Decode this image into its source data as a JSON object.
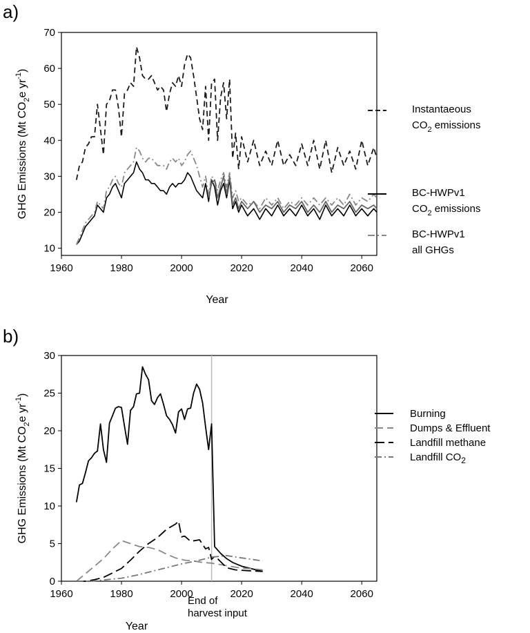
{
  "chart_data": [
    {
      "type": "line",
      "panel_label": "a)",
      "xlabel": "Year",
      "ylabel_main": "GHG Emissions (Mt CO",
      "ylabel_sub": "2",
      "ylabel_mid": "e yr",
      "ylabel_sup": "-1",
      "ylabel_end": ")",
      "xlim": [
        1960,
        2065
      ],
      "ylim": [
        8,
        70
      ],
      "xticks": [
        1960,
        1980,
        2000,
        2020,
        2040,
        2060
      ],
      "yticks": [
        10,
        20,
        30,
        40,
        50,
        60,
        70
      ],
      "grid": false,
      "legend_position": "right",
      "series": [
        {
          "name": "Instantaeous CO2 emissions",
          "legend_line1": "Instantaeous",
          "legend_line2_main": "CO",
          "legend_line2_sub": "2",
          "legend_line2_end": " emissions",
          "color": "#1a1a1a",
          "dash": "8,5",
          "x": [
            1965,
            1966,
            1967,
            1968,
            1969,
            1970,
            1971,
            1972,
            1973,
            1974,
            1975,
            1976,
            1977,
            1978,
            1979,
            1980,
            1981,
            1982,
            1983,
            1984,
            1985,
            1986,
            1987,
            1988,
            1989,
            1990,
            1991,
            1992,
            1993,
            1994,
            1995,
            1996,
            1997,
            1998,
            1999,
            2000,
            2001,
            2002,
            2003,
            2004,
            2005,
            2006,
            2007,
            2008,
            2009,
            2010,
            2011,
            2012,
            2013,
            2014,
            2015,
            2016,
            2017,
            2018,
            2019,
            2020,
            2022,
            2024,
            2026,
            2028,
            2030,
            2032,
            2034,
            2036,
            2038,
            2040,
            2042,
            2044,
            2046,
            2048,
            2050,
            2052,
            2054,
            2056,
            2058,
            2060,
            2062,
            2064,
            2065
          ],
          "y": [
            29,
            33,
            34,
            38,
            39,
            41,
            41,
            50,
            43,
            36,
            50,
            51,
            54,
            54,
            49,
            41,
            53,
            54,
            56,
            55,
            66,
            63,
            58,
            57,
            57,
            58,
            56,
            54,
            55,
            54,
            48,
            53,
            56,
            55,
            58,
            55,
            61,
            64,
            63,
            58,
            52,
            46,
            43,
            55,
            40,
            56,
            57,
            40,
            52,
            56,
            46,
            57,
            35,
            42,
            32,
            41,
            34,
            40,
            33,
            37,
            33,
            40,
            33,
            36,
            33,
            39,
            33,
            40,
            32,
            40,
            31,
            38,
            33,
            37,
            32,
            40,
            33,
            38,
            35
          ]
        },
        {
          "name": "BC-HWPv1 CO2 emissions",
          "legend_line1": "BC-HWPv1",
          "legend_line2_main": "CO",
          "legend_line2_sub": "2",
          "legend_line2_end": " emissions",
          "color": "#000000",
          "dash": "",
          "x": [
            1965,
            1966,
            1967,
            1968,
            1969,
            1970,
            1971,
            1972,
            1973,
            1974,
            1975,
            1976,
            1977,
            1978,
            1979,
            1980,
            1981,
            1982,
            1983,
            1984,
            1985,
            1986,
            1987,
            1988,
            1989,
            1990,
            1991,
            1992,
            1993,
            1994,
            1995,
            1996,
            1997,
            1998,
            1999,
            2000,
            2001,
            2002,
            2003,
            2004,
            2005,
            2006,
            2007,
            2008,
            2009,
            2010,
            2011,
            2012,
            2013,
            2014,
            2015,
            2016,
            2017,
            2018,
            2019,
            2020,
            2022,
            2024,
            2026,
            2028,
            2030,
            2032,
            2034,
            2036,
            2038,
            2040,
            2042,
            2044,
            2046,
            2048,
            2050,
            2052,
            2054,
            2056,
            2058,
            2060,
            2062,
            2064,
            2065
          ],
          "y": [
            11,
            12,
            14,
            16,
            17,
            18,
            19,
            22,
            21,
            20,
            24,
            25,
            27,
            28,
            26,
            24,
            28,
            29,
            30,
            31,
            34,
            32,
            31,
            29,
            29,
            28,
            28,
            27,
            26,
            26,
            25,
            27,
            28,
            27,
            28,
            28,
            29,
            31,
            30,
            28,
            26,
            25,
            24,
            28,
            23,
            29,
            27,
            22,
            26,
            28,
            24,
            29,
            21,
            23,
            20,
            22,
            19,
            21,
            18,
            21,
            19,
            22,
            19,
            21,
            19,
            22,
            19,
            21,
            18,
            22,
            19,
            21,
            19,
            22,
            19,
            21,
            19,
            21,
            20
          ]
        },
        {
          "name": "BC-HWPv1 all GHGs",
          "legend_line1": "BC-HWPv1",
          "legend_line2_main": "all GHGs",
          "legend_line2_sub": "",
          "legend_line2_end": "",
          "color": "#888888",
          "dash": "10,4,2,4",
          "x": [
            1965,
            1966,
            1967,
            1968,
            1969,
            1970,
            1971,
            1972,
            1973,
            1974,
            1975,
            1976,
            1977,
            1978,
            1979,
            1980,
            1981,
            1982,
            1983,
            1984,
            1985,
            1986,
            1987,
            1988,
            1989,
            1990,
            1991,
            1992,
            1993,
            1994,
            1995,
            1996,
            1997,
            1998,
            1999,
            2000,
            2001,
            2002,
            2003,
            2004,
            2005,
            2006,
            2007,
            2008,
            2009,
            2010,
            2011,
            2012,
            2013,
            2014,
            2015,
            2016,
            2017,
            2018,
            2019,
            2020,
            2022,
            2024,
            2026,
            2028,
            2030,
            2032,
            2034,
            2036,
            2038,
            2040,
            2042,
            2044,
            2046,
            2048,
            2050,
            2052,
            2054,
            2056,
            2058,
            2060,
            2062,
            2064,
            2065
          ],
          "y": [
            11,
            13,
            15,
            17,
            18,
            19,
            20,
            23,
            22,
            21,
            26,
            27,
            29,
            30,
            28,
            27,
            31,
            32,
            33,
            34,
            38,
            37,
            35,
            34,
            35,
            35,
            34,
            33,
            33,
            33,
            32,
            34,
            35,
            34,
            35,
            33,
            34,
            36,
            37,
            35,
            33,
            30,
            27,
            30,
            25,
            30,
            29,
            26,
            29,
            31,
            27,
            31,
            24,
            26,
            23,
            24,
            22,
            23,
            21,
            24,
            22,
            24,
            21,
            23,
            22,
            24,
            22,
            24,
            22,
            24,
            22,
            24,
            22,
            25,
            22,
            24,
            23,
            25,
            24
          ]
        },
        {
          "name": "",
          "color": "#666666",
          "dash": "",
          "x": [
            2009,
            2010,
            2011,
            2012,
            2013,
            2014,
            2015,
            2016,
            2017,
            2018,
            2019,
            2020,
            2022,
            2024,
            2026,
            2028,
            2030,
            2032,
            2034,
            2036,
            2038,
            2040,
            2042,
            2044,
            2046,
            2048,
            2050,
            2052,
            2054,
            2056,
            2058,
            2060,
            2062,
            2064,
            2065
          ],
          "y": [
            24,
            28,
            29,
            24,
            27,
            30,
            25,
            30,
            22,
            24,
            21,
            23,
            21,
            23,
            20,
            22,
            21,
            23,
            20,
            22,
            21,
            23,
            20,
            22,
            20,
            23,
            20,
            22,
            21,
            23,
            20,
            22,
            21,
            22,
            21
          ]
        }
      ]
    },
    {
      "type": "line",
      "panel_label": "b)",
      "xlabel": "Year",
      "ylabel_main": "GHG Emissions (Mt CO",
      "ylabel_sub": "2",
      "ylabel_mid": "e yr",
      "ylabel_sup": "-1",
      "ylabel_end": ")",
      "xlim": [
        1960,
        2065
      ],
      "ylim": [
        0,
        30
      ],
      "xticks": [
        1960,
        1980,
        2000,
        2020,
        2040,
        2060
      ],
      "yticks": [
        0,
        5,
        10,
        15,
        20,
        25,
        30
      ],
      "grid": false,
      "legend_position": "right",
      "reference_line": {
        "x": 2010,
        "color": "#bbbbbb",
        "label_line1": "End of",
        "label_line2": "harvest input"
      },
      "series": [
        {
          "name": "Burning",
          "label_main": "Burning",
          "label_sub": "",
          "color": "#000000",
          "dash": "",
          "x": [
            1965,
            1966,
            1967,
            1968,
            1969,
            1970,
            1971,
            1972,
            1973,
            1974,
            1975,
            1976,
            1977,
            1978,
            1979,
            1980,
            1981,
            1982,
            1983,
            1984,
            1985,
            1986,
            1987,
            1988,
            1989,
            1990,
            1991,
            1992,
            1993,
            1994,
            1995,
            1996,
            1997,
            1998,
            1999,
            2000,
            2001,
            2002,
            2003,
            2004,
            2005,
            2006,
            2007,
            2008,
            2009,
            2010,
            2011,
            2013,
            2015,
            2017,
            2020,
            2024,
            2027
          ],
          "y": [
            10.5,
            12.8,
            13,
            14.4,
            16,
            16.4,
            17,
            17.3,
            20.9,
            17.5,
            15.8,
            21,
            22,
            23,
            23.2,
            23.1,
            20.6,
            18.2,
            22.7,
            23.2,
            24.9,
            25,
            28.5,
            27.5,
            26.8,
            24,
            23.5,
            24.4,
            24.9,
            23.5,
            22,
            21.5,
            20.8,
            19.7,
            22.5,
            22.9,
            21.5,
            22.9,
            23,
            25,
            26.2,
            25.5,
            23.7,
            20.5,
            17.5,
            20.9,
            4.6,
            3.7,
            3,
            2.5,
            2,
            1.6,
            1.3
          ]
        },
        {
          "name": "Dumps & Effluent",
          "label_main": "Dumps & Effluent",
          "label_sub": "",
          "color": "#888888",
          "dash": "12,6",
          "x": [
            1965,
            1968,
            1971,
            1974,
            1977,
            1980,
            1983,
            1986,
            1989,
            1992,
            1995,
            1998,
            2001,
            2004,
            2007,
            2010,
            2013,
            2016,
            2019,
            2022,
            2025,
            2027
          ],
          "y": [
            0,
            1,
            2,
            3,
            4.3,
            5.4,
            5,
            4.6,
            4.5,
            4.2,
            3.6,
            3.1,
            2.8,
            2.7,
            2.5,
            2.4,
            2.2,
            2.0,
            1.8,
            1.7,
            1.6,
            1.5
          ]
        },
        {
          "name": "Landfill methane",
          "label_main": "Landfill methane",
          "label_sub": "",
          "color": "#000000",
          "dash": "14,6",
          "x": [
            1965,
            1968,
            1971,
            1974,
            1977,
            1980,
            1983,
            1986,
            1989,
            1992,
            1995,
            1998,
            1999,
            2000,
            2001,
            2003,
            2006,
            2008,
            2009,
            2010,
            2011,
            2012,
            2013,
            2015,
            2018,
            2022,
            2027
          ],
          "y": [
            0,
            0,
            0.2,
            0.5,
            1.1,
            1.7,
            2.8,
            4.0,
            5.0,
            5.8,
            6.9,
            7.6,
            8.0,
            5.9,
            6.0,
            5.3,
            5.5,
            4.3,
            4.5,
            2.9,
            3.3,
            3.0,
            2.6,
            1.8,
            1.5,
            1.4,
            1.3
          ]
        },
        {
          "name": "Landfill CO2",
          "label_main": "Landfill CO",
          "label_sub": "2",
          "color": "#777777",
          "dash": "10,4,2,4",
          "x": [
            1965,
            1970,
            1975,
            1980,
            1985,
            1990,
            1995,
            2000,
            2005,
            2010,
            2015,
            2020,
            2027
          ],
          "y": [
            0,
            0,
            0.2,
            0.4,
            0.8,
            1.3,
            1.8,
            2.3,
            2.7,
            3.2,
            3.4,
            3.1,
            2.7
          ]
        }
      ]
    }
  ]
}
